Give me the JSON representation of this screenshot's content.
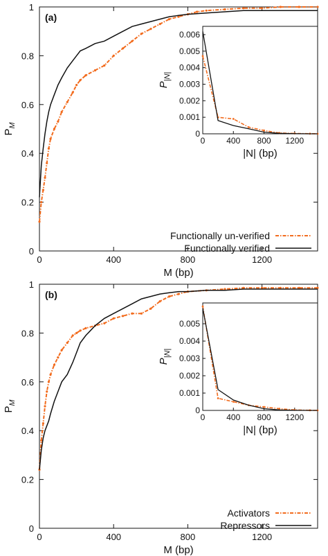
{
  "chart_data": [
    {
      "type": "line",
      "panel_label": "(a)",
      "xlabel": "M (bp)",
      "ylabel": "P_M",
      "xlim": [
        0,
        1500
      ],
      "ylim": [
        0,
        1
      ],
      "xticks": [
        0,
        400,
        800,
        1200
      ],
      "yticks": [
        0,
        0.2,
        0.4,
        0.6,
        0.8,
        1
      ],
      "legend_position": "bottom-right",
      "series": [
        {
          "name": "Functionally un-verified",
          "color": "#f26b1d",
          "style": "dash-dot-points",
          "x": [
            0,
            10,
            20,
            30,
            40,
            50,
            60,
            80,
            100,
            120,
            150,
            180,
            200,
            220,
            250,
            300,
            350,
            400,
            450,
            500,
            550,
            600,
            650,
            700,
            750,
            800,
            850,
            900,
            1000,
            1100,
            1200,
            1300,
            1400,
            1500
          ],
          "y": [
            0.12,
            0.2,
            0.25,
            0.3,
            0.36,
            0.42,
            0.46,
            0.5,
            0.53,
            0.57,
            0.61,
            0.65,
            0.68,
            0.7,
            0.72,
            0.74,
            0.76,
            0.8,
            0.83,
            0.86,
            0.89,
            0.91,
            0.93,
            0.95,
            0.96,
            0.97,
            0.98,
            0.985,
            0.99,
            0.995,
            0.995,
            1.0,
            1.0,
            1.0
          ]
        },
        {
          "name": "Functionally verified",
          "color": "#111111",
          "style": "solid",
          "x": [
            0,
            10,
            20,
            30,
            40,
            50,
            60,
            80,
            100,
            120,
            150,
            180,
            200,
            220,
            250,
            300,
            350,
            400,
            450,
            500,
            550,
            600,
            650,
            700,
            750,
            800,
            900,
            1000,
            1100,
            1200,
            1300,
            1400,
            1500
          ],
          "y": [
            0.22,
            0.35,
            0.42,
            0.48,
            0.53,
            0.57,
            0.6,
            0.64,
            0.68,
            0.71,
            0.75,
            0.78,
            0.8,
            0.82,
            0.83,
            0.85,
            0.86,
            0.88,
            0.9,
            0.92,
            0.93,
            0.94,
            0.95,
            0.96,
            0.965,
            0.97,
            0.975,
            0.98,
            0.985,
            0.985,
            0.985,
            0.985,
            0.985
          ]
        }
      ],
      "inset": {
        "xlabel": "|N| (bp)",
        "ylabel": "P_|N|",
        "xlim": [
          0,
          1500
        ],
        "ylim": [
          0,
          0.0065
        ],
        "xticks": [
          0,
          400,
          800,
          1200
        ],
        "yticks": [
          0,
          0.001,
          0.002,
          0.003,
          0.004,
          0.005,
          0.006
        ],
        "ytick_labels": [
          "0",
          "0.001",
          "0.002",
          "0.003",
          "0.004",
          "0.005",
          "0.006"
        ],
        "series": [
          {
            "name": "Functionally un-verified",
            "color": "#f26b1d",
            "style": "dash-dot-points",
            "x": [
              0,
              200,
              400,
              600,
              800,
              1000,
              1200,
              1400,
              1500
            ],
            "y": [
              0.0047,
              0.001,
              0.0009,
              0.0004,
              0.0002,
              5e-05,
              2e-05,
              1e-05,
              0.0
            ]
          },
          {
            "name": "Functionally verified",
            "color": "#111111",
            "style": "solid",
            "x": [
              0,
              200,
              400,
              600,
              800,
              1000,
              1200,
              1400,
              1500
            ],
            "y": [
              0.0062,
              0.0008,
              0.0005,
              0.0003,
              0.0001,
              3e-05,
              1e-05,
              0.0,
              0.0
            ]
          }
        ]
      }
    },
    {
      "type": "line",
      "panel_label": "(b)",
      "xlabel": "M (bp)",
      "ylabel": "P_M",
      "xlim": [
        0,
        1500
      ],
      "ylim": [
        0,
        1
      ],
      "xticks": [
        0,
        400,
        800,
        1200
      ],
      "yticks": [
        0,
        0.2,
        0.4,
        0.6,
        0.8,
        1
      ],
      "legend_position": "bottom-right",
      "series": [
        {
          "name": "Activators",
          "color": "#f26b1d",
          "style": "dash-dot-points",
          "x": [
            0,
            10,
            20,
            30,
            40,
            50,
            60,
            80,
            100,
            120,
            150,
            180,
            200,
            220,
            250,
            300,
            350,
            400,
            450,
            500,
            550,
            600,
            650,
            700,
            750,
            800,
            900,
            1000,
            1100,
            1200,
            1300,
            1400,
            1500
          ],
          "y": [
            0.24,
            0.36,
            0.43,
            0.5,
            0.56,
            0.6,
            0.63,
            0.67,
            0.7,
            0.73,
            0.76,
            0.79,
            0.8,
            0.81,
            0.82,
            0.83,
            0.84,
            0.86,
            0.87,
            0.88,
            0.88,
            0.9,
            0.93,
            0.95,
            0.96,
            0.97,
            0.975,
            0.98,
            0.985,
            0.985,
            0.985,
            0.985,
            0.985
          ]
        },
        {
          "name": "Repressors",
          "color": "#111111",
          "style": "solid",
          "x": [
            0,
            10,
            20,
            30,
            40,
            50,
            60,
            80,
            100,
            120,
            150,
            180,
            200,
            220,
            250,
            300,
            350,
            400,
            450,
            500,
            550,
            600,
            650,
            700,
            750,
            800,
            900,
            1000,
            1100,
            1200,
            1300,
            1400,
            1500
          ],
          "y": [
            0.24,
            0.32,
            0.37,
            0.4,
            0.42,
            0.44,
            0.47,
            0.52,
            0.56,
            0.6,
            0.63,
            0.68,
            0.72,
            0.76,
            0.79,
            0.83,
            0.86,
            0.88,
            0.9,
            0.92,
            0.94,
            0.95,
            0.96,
            0.965,
            0.97,
            0.97,
            0.975,
            0.975,
            0.98,
            0.98,
            0.98,
            0.98,
            0.98
          ]
        }
      ],
      "inset": {
        "xlabel": "|N| (bp)",
        "ylabel": "P_|N|",
        "xlim": [
          0,
          1500
        ],
        "ylim": [
          0,
          0.0062
        ],
        "xticks": [
          0,
          400,
          800,
          1200
        ],
        "yticks": [
          0,
          0.001,
          0.002,
          0.003,
          0.004,
          0.005
        ],
        "ytick_labels": [
          "0",
          "0.001",
          "0.002",
          "0.003",
          "0.004",
          "0.005"
        ],
        "series": [
          {
            "name": "Activators",
            "color": "#f26b1d",
            "style": "dash-dot-points",
            "x": [
              0,
              200,
              400,
              600,
              800,
              1000,
              1200,
              1400,
              1500
            ],
            "y": [
              0.006,
              0.0007,
              0.0005,
              0.0003,
              0.0002,
              0.0001,
              3e-05,
              1e-05,
              0.0
            ]
          },
          {
            "name": "Repressors",
            "color": "#111111",
            "style": "solid",
            "x": [
              0,
              200,
              400,
              600,
              800,
              1000,
              1200,
              1400,
              1500
            ],
            "y": [
              0.0059,
              0.0012,
              0.0006,
              0.0003,
              0.0001,
              3e-05,
              1e-05,
              0.0,
              0.0
            ]
          }
        ]
      }
    }
  ]
}
